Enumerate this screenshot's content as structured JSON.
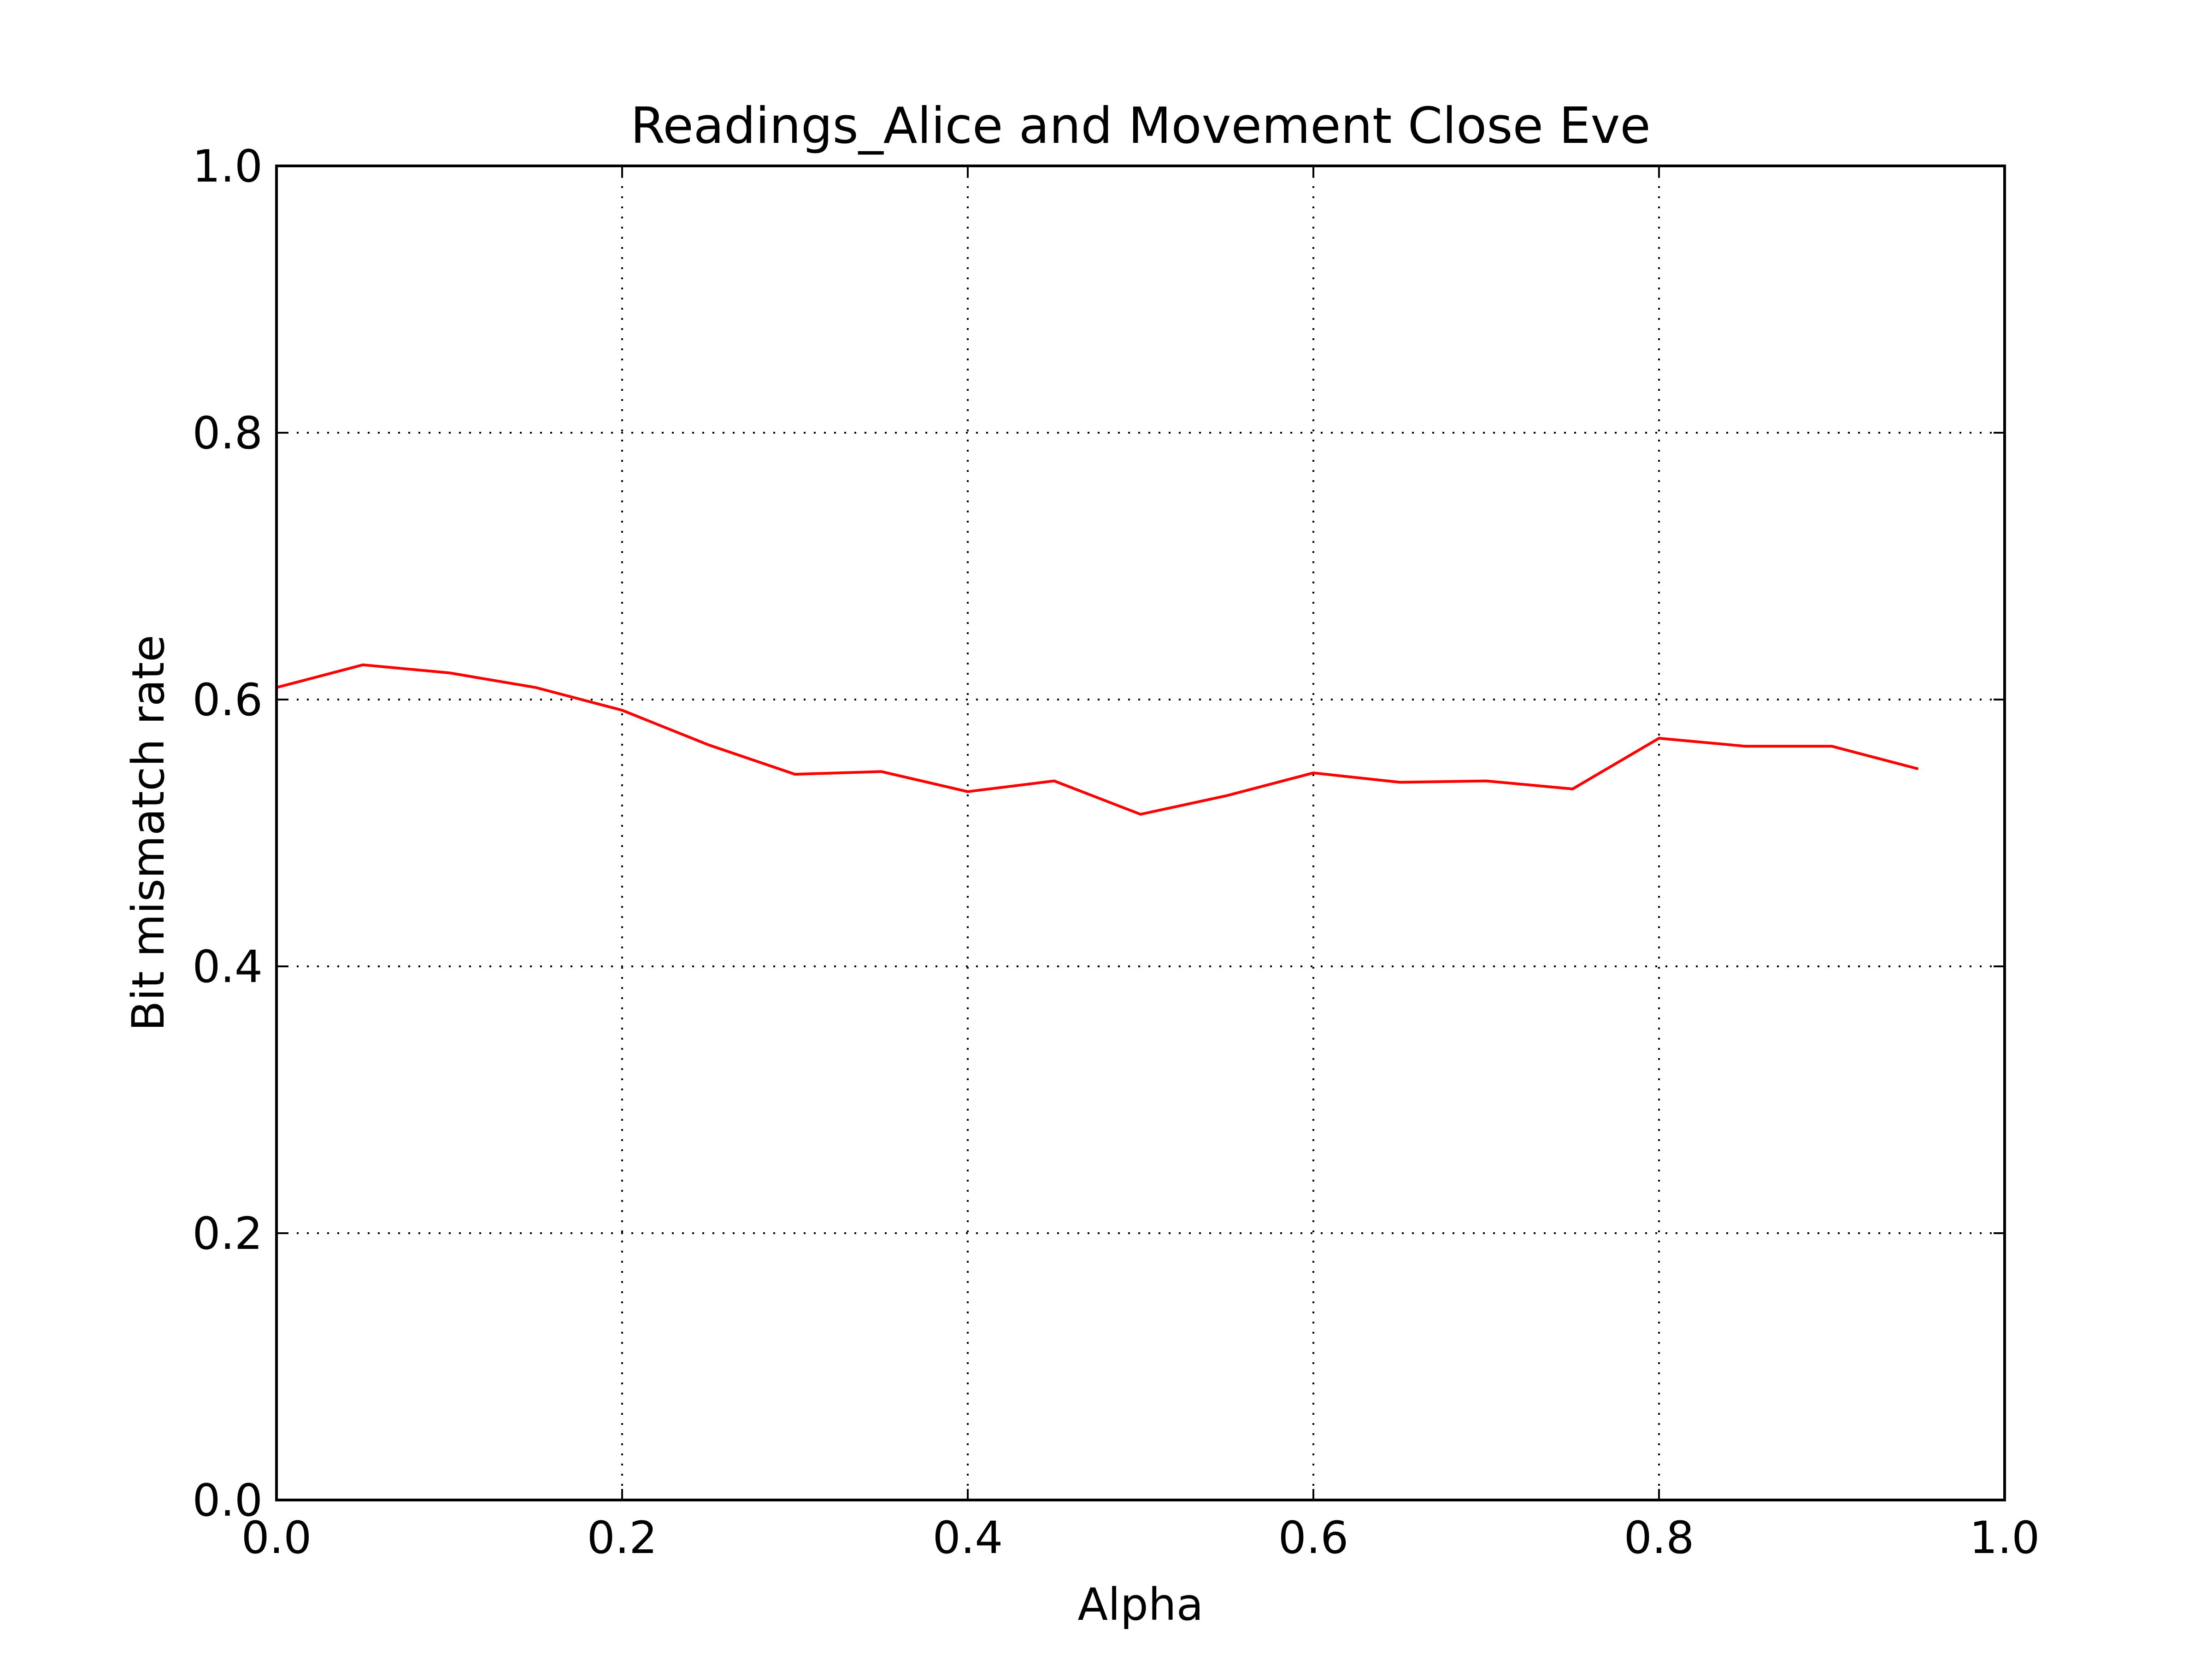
{
  "chart_data": {
    "type": "line",
    "title": "Readings_Alice and Movement Close Eve",
    "xlabel": "Alpha",
    "ylabel": "Bit mismatch rate",
    "xlim": [
      0.0,
      1.0
    ],
    "ylim": [
      0.0,
      1.0
    ],
    "xticks": [
      "0.0",
      "0.2",
      "0.4",
      "0.6",
      "0.8",
      "1.0"
    ],
    "yticks": [
      "0.0",
      "0.2",
      "0.4",
      "0.6",
      "0.8",
      "1.0"
    ],
    "grid": true,
    "series": [
      {
        "color": "#ff0000",
        "x": [
          0.0,
          0.05,
          0.1,
          0.15,
          0.2,
          0.25,
          0.3,
          0.35,
          0.4,
          0.45,
          0.5,
          0.55,
          0.6,
          0.65,
          0.7,
          0.75,
          0.8,
          0.85,
          0.9,
          0.95
        ],
        "y": [
          0.609,
          0.626,
          0.62,
          0.609,
          0.592,
          0.566,
          0.544,
          0.546,
          0.531,
          0.539,
          0.514,
          0.528,
          0.545,
          0.538,
          0.539,
          0.533,
          0.571,
          0.565,
          0.565,
          0.548
        ]
      }
    ]
  }
}
